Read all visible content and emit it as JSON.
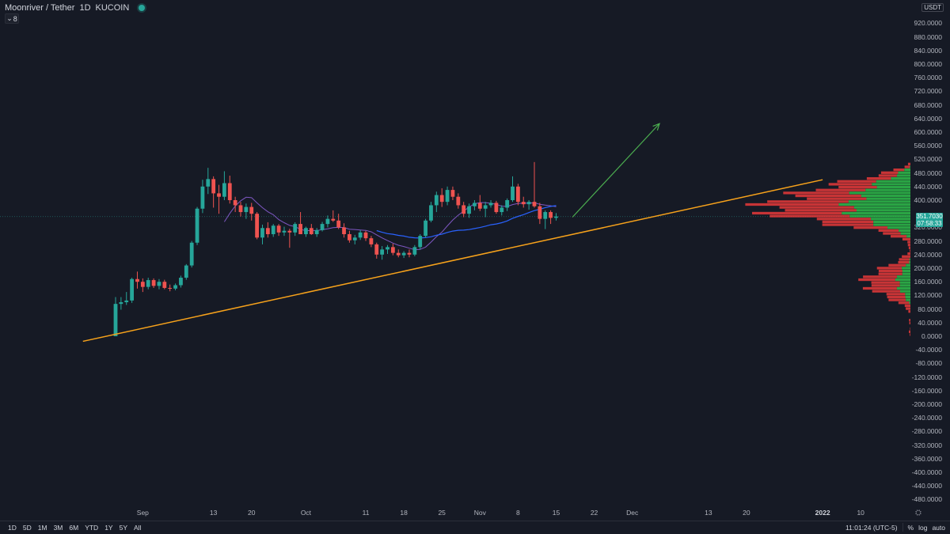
{
  "header": {
    "symbol": "Moonriver / Tether",
    "interval": "1D",
    "exchange": "KUCOIN",
    "indicator_toggle_label": "8",
    "indicator_toggle_icon": "chevron-down-icon"
  },
  "price_scale": {
    "currency": "USDT",
    "ticks": [
      "920.0000",
      "880.0000",
      "840.0000",
      "800.0000",
      "760.0000",
      "720.0000",
      "680.0000",
      "640.0000",
      "600.0000",
      "560.0000",
      "520.0000",
      "480.0000",
      "440.0000",
      "400.0000",
      "320.0000",
      "280.0000",
      "240.0000",
      "200.0000",
      "160.0000",
      "120.0000",
      "80.0000",
      "40.0000",
      "0.0000",
      "-40.0000",
      "-80.0000",
      "-120.0000",
      "-160.0000",
      "-200.0000",
      "-240.0000",
      "-280.0000",
      "-320.0000",
      "-360.0000",
      "-400.0000",
      "-440.0000",
      "-480.0000"
    ],
    "last_price": "351.7030",
    "countdown": "07:58:33",
    "last_price_color": "#26a69a"
  },
  "time_axis": {
    "labels": [
      "Sep",
      "13",
      "20",
      "Oct",
      "11",
      "18",
      "25",
      "Nov",
      "8",
      "15",
      "22",
      "Dec",
      "13",
      "20",
      "2022",
      "10"
    ],
    "emphasis": [
      "2022"
    ]
  },
  "bottom_bar": {
    "ranges": [
      "1D",
      "5D",
      "1M",
      "3M",
      "6M",
      "YTD",
      "1Y",
      "5Y",
      "All"
    ],
    "clock": "11:01:24 (UTC-5)",
    "percent_label": "%",
    "log_label": "log",
    "auto_label": "auto"
  },
  "colors": {
    "background": "#161a25",
    "up": "#26a69a",
    "down": "#ef5350",
    "trendline": "#f7a21b",
    "arrow": "#4caf50",
    "ma_fast": "#7e57c2",
    "ma_slow": "#2962ff",
    "volume_profile_up": "#2ebd4a",
    "volume_profile_down": "#e63939"
  },
  "icons": [
    "status-dot-icon",
    "chevron-down-icon",
    "settings-gear-icon",
    "arrow-icon"
  ],
  "chart_data": {
    "type": "candlestick",
    "title": "Moonriver / Tether 1D KUCOIN",
    "ylim": [
      -500,
      940
    ],
    "candles": [
      {
        "o": 0,
        "h": 115,
        "l": 0,
        "c": 95
      },
      {
        "o": 95,
        "h": 115,
        "l": 78,
        "c": 100
      },
      {
        "o": 100,
        "h": 130,
        "l": 92,
        "c": 105
      },
      {
        "o": 105,
        "h": 172,
        "l": 98,
        "c": 168
      },
      {
        "o": 168,
        "h": 190,
        "l": 140,
        "c": 160
      },
      {
        "o": 160,
        "h": 170,
        "l": 130,
        "c": 145
      },
      {
        "o": 145,
        "h": 172,
        "l": 138,
        "c": 165
      },
      {
        "o": 165,
        "h": 170,
        "l": 142,
        "c": 148
      },
      {
        "o": 148,
        "h": 168,
        "l": 138,
        "c": 160
      },
      {
        "o": 160,
        "h": 166,
        "l": 138,
        "c": 142
      },
      {
        "o": 142,
        "h": 152,
        "l": 132,
        "c": 140
      },
      {
        "o": 140,
        "h": 155,
        "l": 135,
        "c": 150
      },
      {
        "o": 150,
        "h": 178,
        "l": 143,
        "c": 172
      },
      {
        "o": 172,
        "h": 212,
        "l": 166,
        "c": 208
      },
      {
        "o": 208,
        "h": 280,
        "l": 202,
        "c": 275
      },
      {
        "o": 275,
        "h": 380,
        "l": 268,
        "c": 375
      },
      {
        "o": 375,
        "h": 460,
        "l": 362,
        "c": 440
      },
      {
        "o": 440,
        "h": 495,
        "l": 418,
        "c": 462
      },
      {
        "o": 462,
        "h": 470,
        "l": 378,
        "c": 420
      },
      {
        "o": 420,
        "h": 445,
        "l": 360,
        "c": 410
      },
      {
        "o": 410,
        "h": 485,
        "l": 400,
        "c": 450
      },
      {
        "o": 450,
        "h": 472,
        "l": 390,
        "c": 400
      },
      {
        "o": 400,
        "h": 410,
        "l": 365,
        "c": 385
      },
      {
        "o": 385,
        "h": 395,
        "l": 352,
        "c": 365
      },
      {
        "o": 365,
        "h": 390,
        "l": 345,
        "c": 380
      },
      {
        "o": 380,
        "h": 392,
        "l": 340,
        "c": 360
      },
      {
        "o": 360,
        "h": 365,
        "l": 285,
        "c": 290
      },
      {
        "o": 290,
        "h": 328,
        "l": 270,
        "c": 318
      },
      {
        "o": 318,
        "h": 335,
        "l": 290,
        "c": 300
      },
      {
        "o": 300,
        "h": 330,
        "l": 292,
        "c": 325
      },
      {
        "o": 325,
        "h": 330,
        "l": 295,
        "c": 305
      },
      {
        "o": 305,
        "h": 322,
        "l": 295,
        "c": 310
      },
      {
        "o": 310,
        "h": 316,
        "l": 260,
        "c": 305
      },
      {
        "o": 305,
        "h": 335,
        "l": 295,
        "c": 330
      },
      {
        "o": 330,
        "h": 365,
        "l": 300,
        "c": 300
      },
      {
        "o": 300,
        "h": 322,
        "l": 292,
        "c": 318
      },
      {
        "o": 318,
        "h": 330,
        "l": 298,
        "c": 300
      },
      {
        "o": 300,
        "h": 318,
        "l": 292,
        "c": 312
      },
      {
        "o": 312,
        "h": 336,
        "l": 308,
        "c": 330
      },
      {
        "o": 330,
        "h": 355,
        "l": 320,
        "c": 345
      },
      {
        "o": 345,
        "h": 370,
        "l": 336,
        "c": 340
      },
      {
        "o": 340,
        "h": 360,
        "l": 315,
        "c": 320
      },
      {
        "o": 320,
        "h": 332,
        "l": 290,
        "c": 300
      },
      {
        "o": 300,
        "h": 310,
        "l": 275,
        "c": 282
      },
      {
        "o": 282,
        "h": 298,
        "l": 270,
        "c": 290
      },
      {
        "o": 290,
        "h": 312,
        "l": 283,
        "c": 305
      },
      {
        "o": 305,
        "h": 310,
        "l": 280,
        "c": 288
      },
      {
        "o": 288,
        "h": 295,
        "l": 262,
        "c": 270
      },
      {
        "o": 270,
        "h": 275,
        "l": 228,
        "c": 240
      },
      {
        "o": 240,
        "h": 265,
        "l": 225,
        "c": 255
      },
      {
        "o": 255,
        "h": 268,
        "l": 242,
        "c": 262
      },
      {
        "o": 262,
        "h": 272,
        "l": 238,
        "c": 245
      },
      {
        "o": 245,
        "h": 255,
        "l": 232,
        "c": 238
      },
      {
        "o": 238,
        "h": 250,
        "l": 230,
        "c": 245
      },
      {
        "o": 245,
        "h": 255,
        "l": 232,
        "c": 240
      },
      {
        "o": 240,
        "h": 268,
        "l": 235,
        "c": 262
      },
      {
        "o": 262,
        "h": 300,
        "l": 255,
        "c": 295
      },
      {
        "o": 295,
        "h": 345,
        "l": 290,
        "c": 340
      },
      {
        "o": 340,
        "h": 395,
        "l": 335,
        "c": 385
      },
      {
        "o": 385,
        "h": 425,
        "l": 365,
        "c": 415
      },
      {
        "o": 415,
        "h": 435,
        "l": 380,
        "c": 395
      },
      {
        "o": 395,
        "h": 440,
        "l": 385,
        "c": 430
      },
      {
        "o": 430,
        "h": 440,
        "l": 400,
        "c": 410
      },
      {
        "o": 410,
        "h": 420,
        "l": 375,
        "c": 385
      },
      {
        "o": 385,
        "h": 395,
        "l": 350,
        "c": 360
      },
      {
        "o": 360,
        "h": 390,
        "l": 348,
        "c": 382
      },
      {
        "o": 382,
        "h": 400,
        "l": 370,
        "c": 392
      },
      {
        "o": 392,
        "h": 415,
        "l": 368,
        "c": 375
      },
      {
        "o": 375,
        "h": 395,
        "l": 350,
        "c": 385
      },
      {
        "o": 385,
        "h": 400,
        "l": 378,
        "c": 392
      },
      {
        "o": 392,
        "h": 398,
        "l": 360,
        "c": 365
      },
      {
        "o": 365,
        "h": 385,
        "l": 355,
        "c": 378
      },
      {
        "o": 378,
        "h": 405,
        "l": 368,
        "c": 400
      },
      {
        "o": 400,
        "h": 470,
        "l": 395,
        "c": 440
      },
      {
        "o": 440,
        "h": 448,
        "l": 385,
        "c": 395
      },
      {
        "o": 395,
        "h": 410,
        "l": 378,
        "c": 388
      },
      {
        "o": 388,
        "h": 400,
        "l": 372,
        "c": 395
      },
      {
        "o": 395,
        "h": 512,
        "l": 378,
        "c": 382
      },
      {
        "o": 382,
        "h": 392,
        "l": 330,
        "c": 345
      },
      {
        "o": 345,
        "h": 370,
        "l": 315,
        "c": 365
      },
      {
        "o": 365,
        "h": 370,
        "l": 330,
        "c": 348
      },
      {
        "o": 348,
        "h": 362,
        "l": 340,
        "c": 352
      }
    ],
    "trendline": {
      "from": {
        "index": -6,
        "price": -15
      },
      "to": {
        "index": 130,
        "price": 460
      }
    },
    "arrow": {
      "from": {
        "index": 84,
        "price": 350
      },
      "to": {
        "index": 100,
        "price": 625
      }
    },
    "moving_averages": [
      {
        "name": "fast",
        "values_from_index": 20
      },
      {
        "name": "slow",
        "values_from_index": 48
      }
    ],
    "volume_profile": {
      "price_min": 0,
      "price_max": 510,
      "bins": 60
    }
  }
}
